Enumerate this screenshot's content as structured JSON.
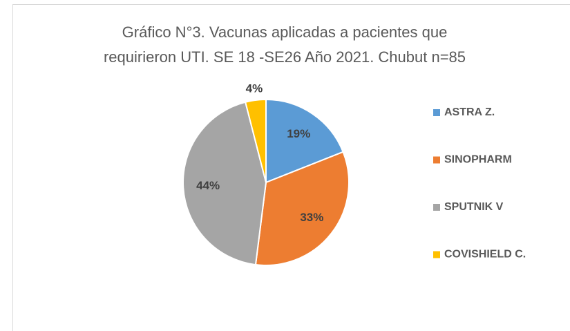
{
  "chart_data": {
    "type": "pie",
    "title": [
      "Gráfico N°3. Vacunas aplicadas a pacientes que",
      "requirieron UTI. SE 18 -SE26 Año 2021. Chubut n=85"
    ],
    "categories": [
      "ASTRA Z.",
      "SINOPHARM",
      "SPUTNIK V",
      "COVISHIELD C."
    ],
    "values": [
      19,
      33,
      44,
      4
    ],
    "value_labels": [
      "19%",
      "33%",
      "44%",
      "4%"
    ],
    "colors": [
      "#5b9bd5",
      "#ed7d31",
      "#a5a5a5",
      "#ffc000"
    ],
    "legend": "right"
  }
}
